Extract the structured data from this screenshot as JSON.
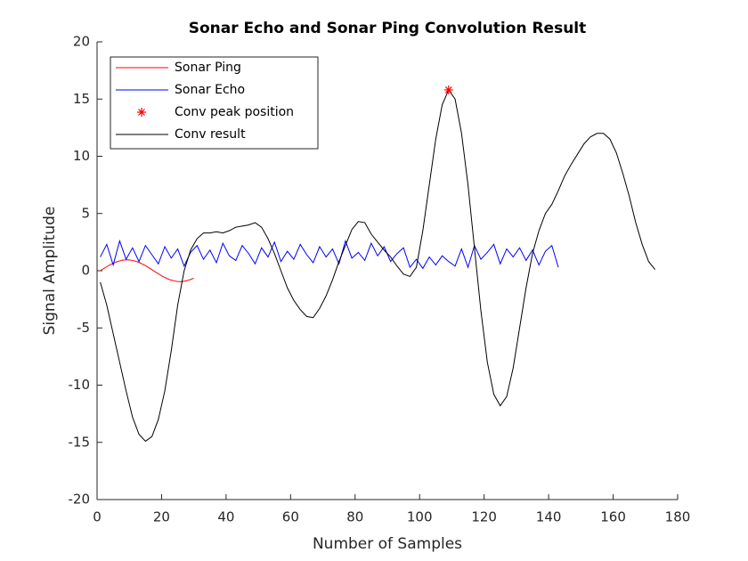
{
  "chart_data": {
    "type": "line",
    "title": "Sonar Echo and Sonar Ping Convolution Result",
    "x_label": "Number of Samples",
    "y_label": "Signal Amplitude",
    "xlim": [
      0,
      180
    ],
    "xticks": [
      0,
      20,
      40,
      60,
      80,
      100,
      120,
      140,
      160,
      180
    ],
    "ylim": [
      -20,
      20
    ],
    "yticks": [
      -20,
      -15,
      -10,
      -5,
      0,
      5,
      10,
      15,
      20
    ],
    "legend": "upper-left",
    "series": [
      {
        "name": "Sonar Ping",
        "color": "#ff0000",
        "marker": "none",
        "x": [
          1,
          2,
          3,
          4,
          5,
          6,
          7,
          8,
          9,
          10,
          11,
          12,
          13,
          14,
          15,
          16,
          17,
          18,
          19,
          20,
          21,
          22,
          23,
          24,
          25,
          26,
          27,
          28,
          29,
          30
        ],
        "values": [
          0,
          0.18,
          0.35,
          0.51,
          0.65,
          0.77,
          0.86,
          0.92,
          0.95,
          0.94,
          0.9,
          0.83,
          0.72,
          0.59,
          0.44,
          0.27,
          0.09,
          -0.09,
          -0.27,
          -0.44,
          -0.59,
          -0.72,
          -0.83,
          -0.9,
          -0.94,
          -0.95,
          -0.92,
          -0.86,
          -0.77,
          -0.65
        ]
      },
      {
        "name": "Sonar Echo",
        "color": "#0000ff",
        "marker": "none",
        "x": [
          1,
          3,
          5,
          7,
          9,
          11,
          13,
          15,
          17,
          19,
          21,
          23,
          25,
          27,
          29,
          31,
          33,
          35,
          37,
          39,
          41,
          43,
          45,
          47,
          49,
          51,
          53,
          55,
          57,
          59,
          61,
          63,
          65,
          67,
          69,
          71,
          73,
          75,
          77,
          79,
          81,
          83,
          85,
          87,
          89,
          91,
          93,
          95,
          97,
          99,
          101,
          103,
          105,
          107,
          109,
          111,
          113,
          115,
          117,
          119,
          121,
          123,
          125,
          127,
          129,
          131,
          133,
          135,
          137,
          139,
          141,
          143
        ],
        "values": [
          1.2,
          2.3,
          0.5,
          2.6,
          1.0,
          2.0,
          0.8,
          2.2,
          1.4,
          0.6,
          2.1,
          1.1,
          1.9,
          0.4,
          1.6,
          2.2,
          1.0,
          1.8,
          0.7,
          2.4,
          1.3,
          0.9,
          2.2,
          1.5,
          0.6,
          2.0,
          1.2,
          2.5,
          0.8,
          1.7,
          1.0,
          2.3,
          1.4,
          0.7,
          2.1,
          1.2,
          1.9,
          0.6,
          2.6,
          1.1,
          1.6,
          0.9,
          2.4,
          1.3,
          2.1,
          0.8,
          1.5,
          2.0,
          0.3,
          1.0,
          0.2,
          1.2,
          0.5,
          1.3,
          0.8,
          0.4,
          1.9,
          0.3,
          2.2,
          1.0,
          1.6,
          2.3,
          0.6,
          1.9,
          1.2,
          2.0,
          0.9,
          1.8,
          0.5,
          1.7,
          2.2,
          0.3
        ]
      },
      {
        "name": "Conv peak position",
        "color": "#ff0000",
        "marker": "*",
        "line": false,
        "x": [
          109
        ],
        "values": [
          15.8
        ]
      },
      {
        "name": "Conv result",
        "color": "#000000",
        "marker": "none",
        "x": [
          1,
          3,
          5,
          7,
          9,
          11,
          13,
          15,
          17,
          19,
          21,
          23,
          25,
          27,
          29,
          31,
          33,
          35,
          37,
          39,
          41,
          43,
          45,
          47,
          49,
          51,
          53,
          55,
          57,
          59,
          61,
          63,
          65,
          67,
          69,
          71,
          73,
          75,
          77,
          79,
          81,
          83,
          85,
          87,
          89,
          91,
          93,
          95,
          97,
          99,
          101,
          103,
          105,
          107,
          109,
          111,
          113,
          115,
          117,
          119,
          121,
          123,
          125,
          127,
          129,
          131,
          133,
          135,
          137,
          139,
          141,
          143,
          145,
          147,
          149,
          151,
          153,
          155,
          157,
          159,
          161,
          163,
          165,
          167,
          169,
          171,
          173
        ],
        "values": [
          -1,
          -3,
          -5.5,
          -8,
          -10.5,
          -12.8,
          -14.3,
          -14.9,
          -14.5,
          -13,
          -10.5,
          -7,
          -3,
          0,
          1.8,
          2.8,
          3.3,
          3.3,
          3.4,
          3.3,
          3.5,
          3.8,
          3.9,
          4,
          4.2,
          3.8,
          2.8,
          1.5,
          0,
          -1.5,
          -2.6,
          -3.4,
          -4,
          -4.1,
          -3.3,
          -2.2,
          -0.8,
          0.8,
          2.2,
          3.6,
          4.3,
          4.2,
          3.2,
          2.5,
          1.8,
          1.2,
          0.4,
          -0.3,
          -0.5,
          0.3,
          3.5,
          7.5,
          11.5,
          14.5,
          15.8,
          15,
          12,
          7.5,
          2,
          -3.5,
          -8,
          -10.8,
          -11.8,
          -11,
          -8.5,
          -5,
          -1.5,
          1.5,
          3.5,
          5,
          5.8,
          7,
          8.3,
          9.3,
          10.2,
          11.1,
          11.7,
          12,
          12,
          11.5,
          10.3,
          8.5,
          6.5,
          4.2,
          2.3,
          0.8,
          0.1
        ]
      }
    ]
  }
}
